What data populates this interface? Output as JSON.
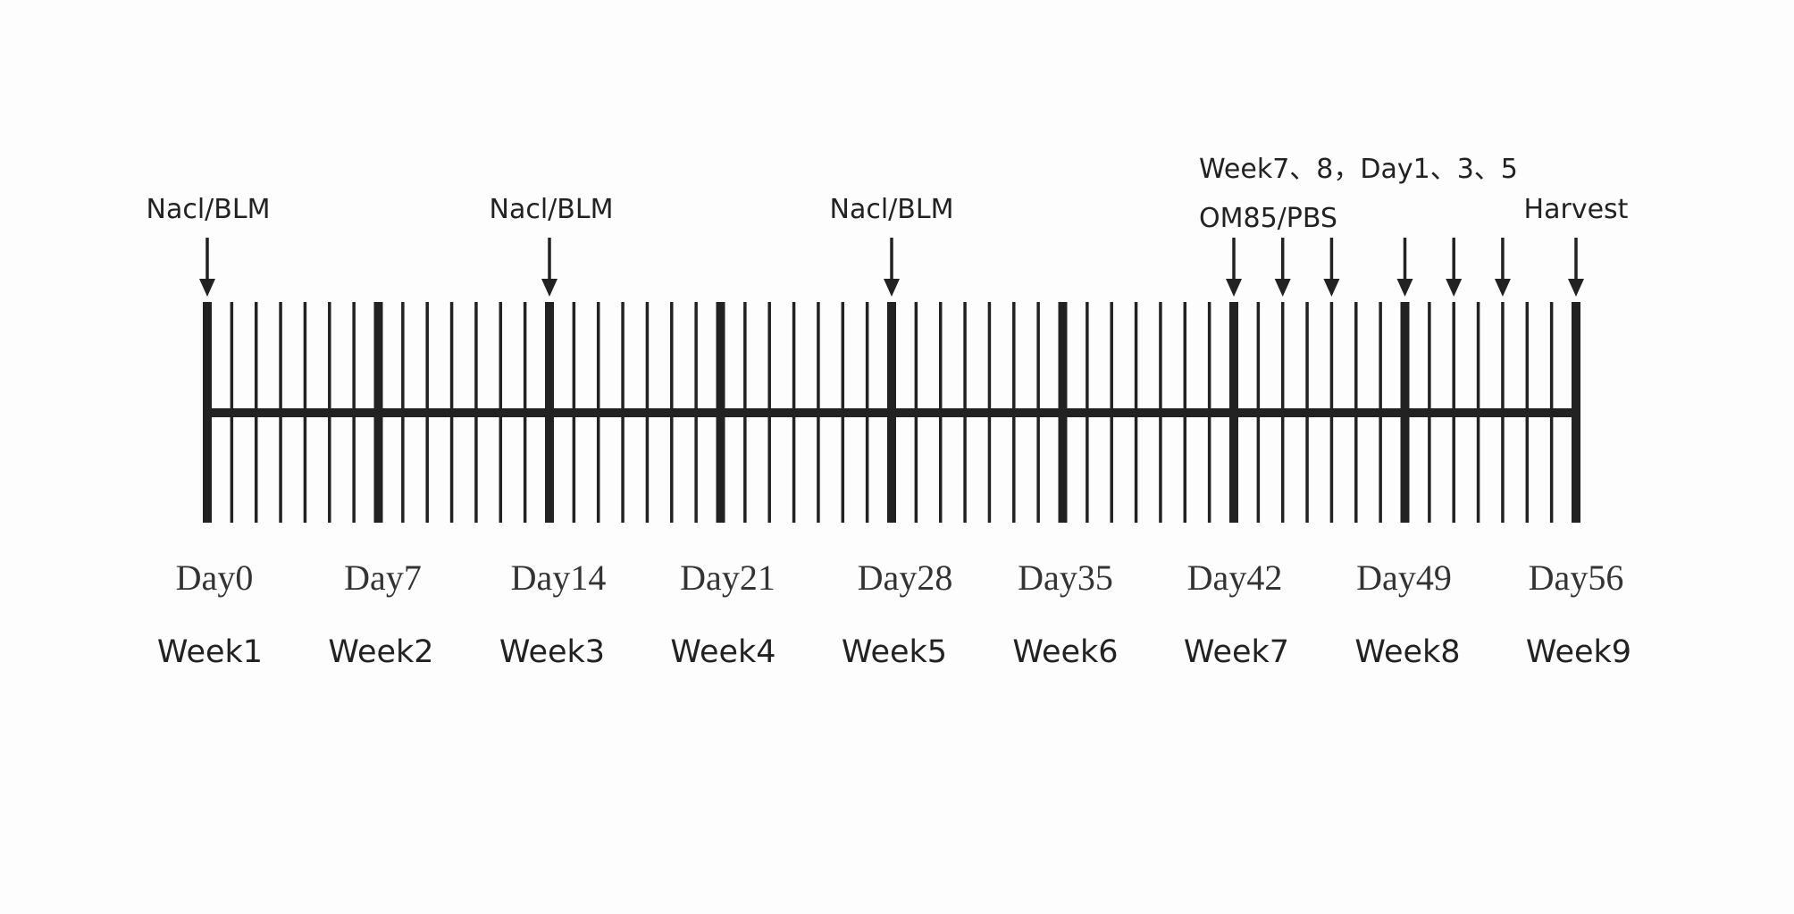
{
  "timeline": {
    "start_day": 0,
    "end_day": 56,
    "days": [
      0,
      1,
      2,
      3,
      4,
      5,
      6,
      7,
      8,
      9,
      10,
      11,
      12,
      13,
      14,
      15,
      16,
      17,
      18,
      19,
      20,
      21,
      22,
      23,
      24,
      25,
      26,
      27,
      28,
      29,
      30,
      31,
      32,
      33,
      34,
      35,
      36,
      37,
      38,
      39,
      40,
      41,
      42,
      43,
      44,
      45,
      46,
      47,
      48,
      49,
      50,
      51,
      52,
      53,
      54,
      55,
      56
    ],
    "major_tick_days": [
      0,
      7,
      14,
      21,
      28,
      35,
      42,
      49,
      56
    ],
    "line_color": "#222222"
  },
  "day_labels": [
    {
      "day": 0,
      "text": "Day0"
    },
    {
      "day": 7,
      "text": "Day7"
    },
    {
      "day": 14,
      "text": "Day14"
    },
    {
      "day": 21,
      "text": "Day21"
    },
    {
      "day": 28,
      "text": "Day28"
    },
    {
      "day": 35,
      "text": "Day35"
    },
    {
      "day": 42,
      "text": "Day42"
    },
    {
      "day": 49,
      "text": "Day49"
    },
    {
      "day": 56,
      "text": "Day56"
    }
  ],
  "week_labels": [
    {
      "day": 0,
      "text": "Week1"
    },
    {
      "day": 7,
      "text": "Week2"
    },
    {
      "day": 14,
      "text": "Week3"
    },
    {
      "day": 21,
      "text": "Week4"
    },
    {
      "day": 28,
      "text": "Week5"
    },
    {
      "day": 35,
      "text": "Week6"
    },
    {
      "day": 42,
      "text": "Week7"
    },
    {
      "day": 49,
      "text": "Week8"
    },
    {
      "day": 56,
      "text": "Week9"
    }
  ],
  "arrows": [
    {
      "day": 0,
      "group": "nacl-blm"
    },
    {
      "day": 14,
      "group": "nacl-blm"
    },
    {
      "day": 28,
      "group": "nacl-blm"
    },
    {
      "day": 42,
      "group": "om85-pbs"
    },
    {
      "day": 44,
      "group": "om85-pbs"
    },
    {
      "day": 46,
      "group": "om85-pbs"
    },
    {
      "day": 49,
      "group": "om85-pbs"
    },
    {
      "day": 51,
      "group": "om85-pbs"
    },
    {
      "day": 53,
      "group": "om85-pbs"
    },
    {
      "day": 56,
      "group": "harvest"
    }
  ],
  "annotations": {
    "nacl_blm_1": "Nacl/BLM",
    "nacl_blm_2": "Nacl/BLM",
    "nacl_blm_3": "Nacl/BLM",
    "om85_schedule": "Week7、8，Day1、3、5",
    "om85_pbs": "OM85/PBS",
    "harvest": "Harvest"
  }
}
